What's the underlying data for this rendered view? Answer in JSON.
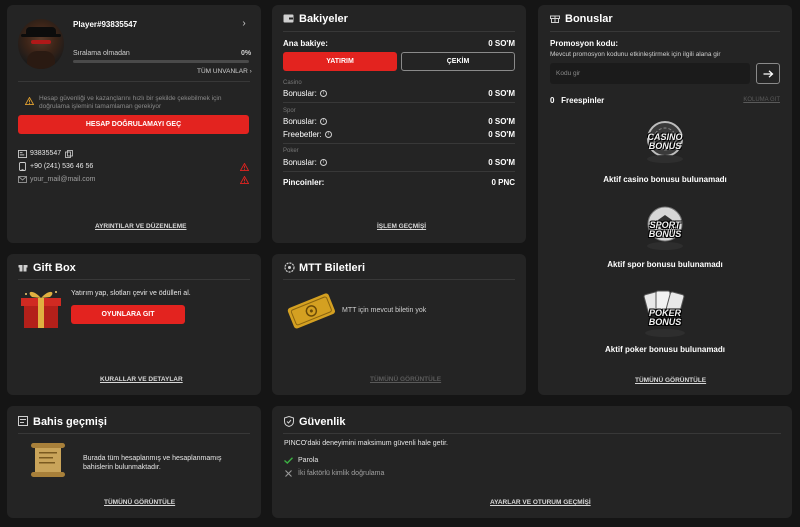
{
  "profile": {
    "player_name": "Player#93835547",
    "rank_label": "Sıralama olmadan",
    "rank_percent": "0%",
    "progress_fraction": 0,
    "all_titles_link": "TÜM UNVANLAR",
    "warning_text": "Hesap güvenliği ve kazançlarını hızlı bir şekilde çekebilmek için doğrulama işlemini tamamlaman gerekiyor",
    "verify_button": "HESAP DOĞRULAMAYI GEÇ",
    "player_id": "93835547",
    "phone": "+90 (241) 536 46 56",
    "email": "your_mail@mail.com",
    "details_link": "AYRINTILAR VE DÜZENLEME"
  },
  "balances": {
    "title": "Bakiyeler",
    "main_label": "Ana bakiye:",
    "main_value": "0 SO'M",
    "deposit_button": "YATIRIM",
    "withdraw_button": "ÇEKİM",
    "casino_section": "Casino",
    "casino_bonus_label": "Bonuslar:",
    "casino_bonus_value": "0 SO'M",
    "sport_section": "Spor",
    "sport_bonus_label": "Bonuslar:",
    "sport_bonus_value": "0 SO'M",
    "freebet_label": "Freebetler:",
    "freebet_value": "0 SO'M",
    "poker_section": "Poker",
    "poker_bonus_label": "Bonuslar:",
    "poker_bonus_value": "0 SO'M",
    "pincoins_label": "Pincoinler:",
    "pincoins_value": "0 PNC",
    "history_link": "İŞLEM GEÇMİŞİ"
  },
  "bonuses": {
    "title": "Bonuslar",
    "promo_label": "Promosyon kodu:",
    "promo_hint": "Mevcut promosyon kodunu etkinleştirmek için ilgili alana gir",
    "promo_placeholder": "Kodu gir",
    "freespin_count": "0",
    "freespin_label": "Freespinler",
    "view_all_inline": "KOLUMA GIT",
    "casino_logo_top": "CASINO",
    "casino_logo_bottom": "BONUS",
    "casino_text": "Aktif casino bonusu bulunamadı",
    "sport_logo_top": "SPORT",
    "sport_logo_bottom": "BONUS",
    "sport_text": "Aktif spor bonusu bulunamadı",
    "poker_logo_top": "POKER",
    "poker_logo_bottom": "BONUS",
    "poker_text": "Aktif poker bonusu bulunamadı",
    "view_all_link": "TÜMÜNÜ GÖRÜNTÜLE"
  },
  "giftbox": {
    "title": "Gift Box",
    "text": "Yatırım yap, slotları çevir ve ödülleri al.",
    "button": "OYUNLARA GIT",
    "link": "KURALLAR VE DETAYLAR"
  },
  "mtt": {
    "title": "MTT Biletleri",
    "text": "MTT için mevcut biletin yok",
    "link": "TÜMÜNÜ GÖRÜNTÜLE"
  },
  "bets": {
    "title": "Bahis geçmişi",
    "text_line1": "Burada tüm hesaplanmış ve hesaplanmamış",
    "text_line2": "bahislerin bulunmaktadır.",
    "link": "TÜMÜNÜ GÖRÜNTÜLE"
  },
  "security": {
    "title": "Güvenlik",
    "intro": "PINCO'daki deneyimini maksimum güvenli hale getir.",
    "password_label": "Parola",
    "twofa_label": "İki faktörlü kimlik doğrulama",
    "link": "AYARLAR VE OTURUM GEÇMİŞİ"
  },
  "colors": {
    "accent": "#e3231f",
    "card": "#242424",
    "background": "#151515",
    "check": "#3cb043"
  }
}
